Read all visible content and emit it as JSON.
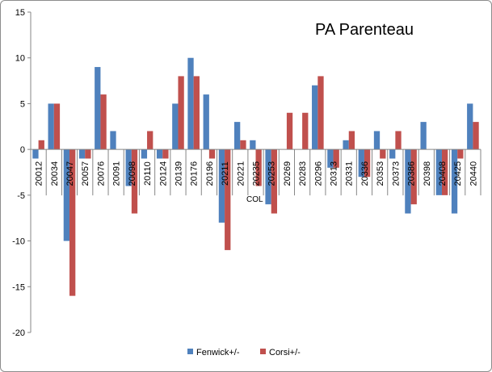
{
  "chart_data": {
    "type": "bar",
    "title": "PA Parenteau",
    "xlabel": "COL",
    "ylabel": "",
    "ylim": [
      -20,
      15
    ],
    "yticks": [
      15,
      10,
      5,
      0,
      -5,
      -10,
      -15,
      -20
    ],
    "grid": false,
    "legend_position": "bottom",
    "categories": [
      "20012",
      "20034",
      "20047",
      "20057",
      "20076",
      "20091",
      "20098",
      "20110",
      "20124",
      "20139",
      "20176",
      "20196",
      "20211",
      "20221",
      "20235",
      "20253",
      "20269",
      "20283",
      "20296",
      "20313",
      "20331",
      "20336",
      "20353",
      "20373",
      "20386",
      "20398",
      "20408",
      "20425",
      "20440"
    ],
    "series": [
      {
        "name": "Fenwick+/-",
        "color": "#4f81bd",
        "values": [
          -1,
          5,
          -10,
          -1,
          9,
          2,
          -4,
          -1,
          -1,
          5,
          10,
          6,
          -8,
          3,
          1,
          -6,
          0,
          0,
          7,
          -2,
          1,
          -3,
          2,
          -1,
          -7,
          3,
          -5,
          -7,
          5
        ]
      },
      {
        "name": "Corsi+/-",
        "color": "#c0504d",
        "values": [
          1,
          5,
          -16,
          -1,
          6,
          0,
          -7,
          2,
          -1,
          8,
          8,
          -1,
          -11,
          1,
          -4,
          -7,
          4,
          4,
          8,
          -2,
          2,
          -3,
          -1,
          2,
          -6,
          0,
          -5,
          -1,
          3
        ]
      }
    ]
  }
}
